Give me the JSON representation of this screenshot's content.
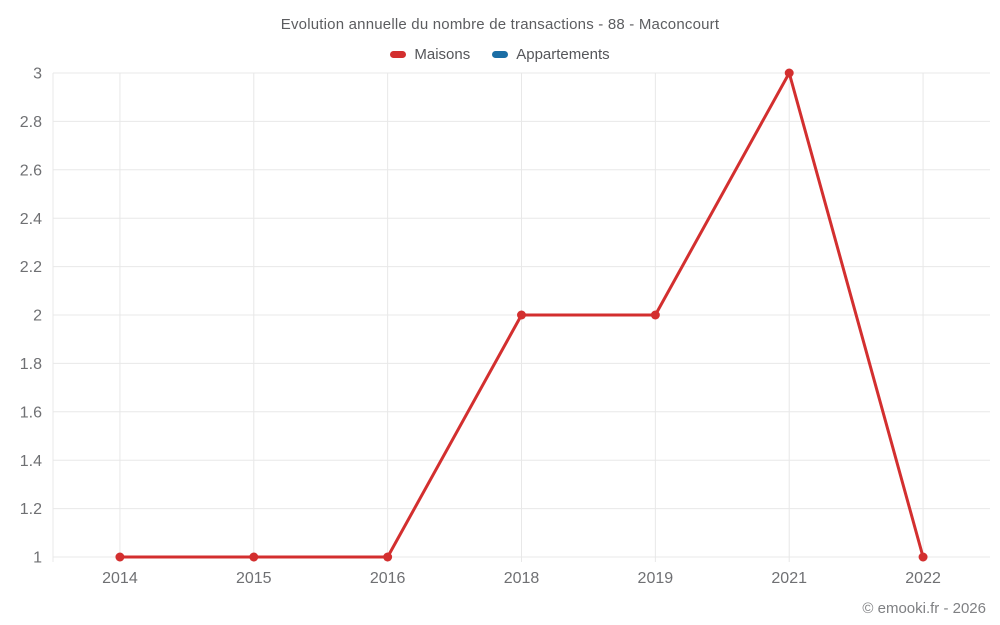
{
  "chart_data": {
    "type": "line",
    "title": "Evolution annuelle du nombre de transactions - 88 - Maconcourt",
    "categories": [
      "2014",
      "2015",
      "2016",
      "2018",
      "2019",
      "2021",
      "2022"
    ],
    "series": [
      {
        "name": "Maisons",
        "color": "#d32f2f",
        "values": [
          1,
          1,
          1,
          2,
          2,
          3,
          1
        ]
      },
      {
        "name": "Appartements",
        "color": "#1b6ea5",
        "values": []
      }
    ],
    "ylim": [
      1,
      3
    ],
    "yticks": [
      1,
      1.2,
      1.4,
      1.6,
      1.8,
      2,
      2.2,
      2.4,
      2.6,
      2.8,
      3
    ],
    "xlabel": "",
    "ylabel": "",
    "grid": true,
    "legend_position": "top",
    "colors": {
      "gridline": "#e8e8e8",
      "tick_text": "#6f7073",
      "title_text": "#5c5d60",
      "watermark_text": "#7f8083"
    }
  },
  "footer": {
    "watermark": "© emooki.fr - 2026"
  }
}
